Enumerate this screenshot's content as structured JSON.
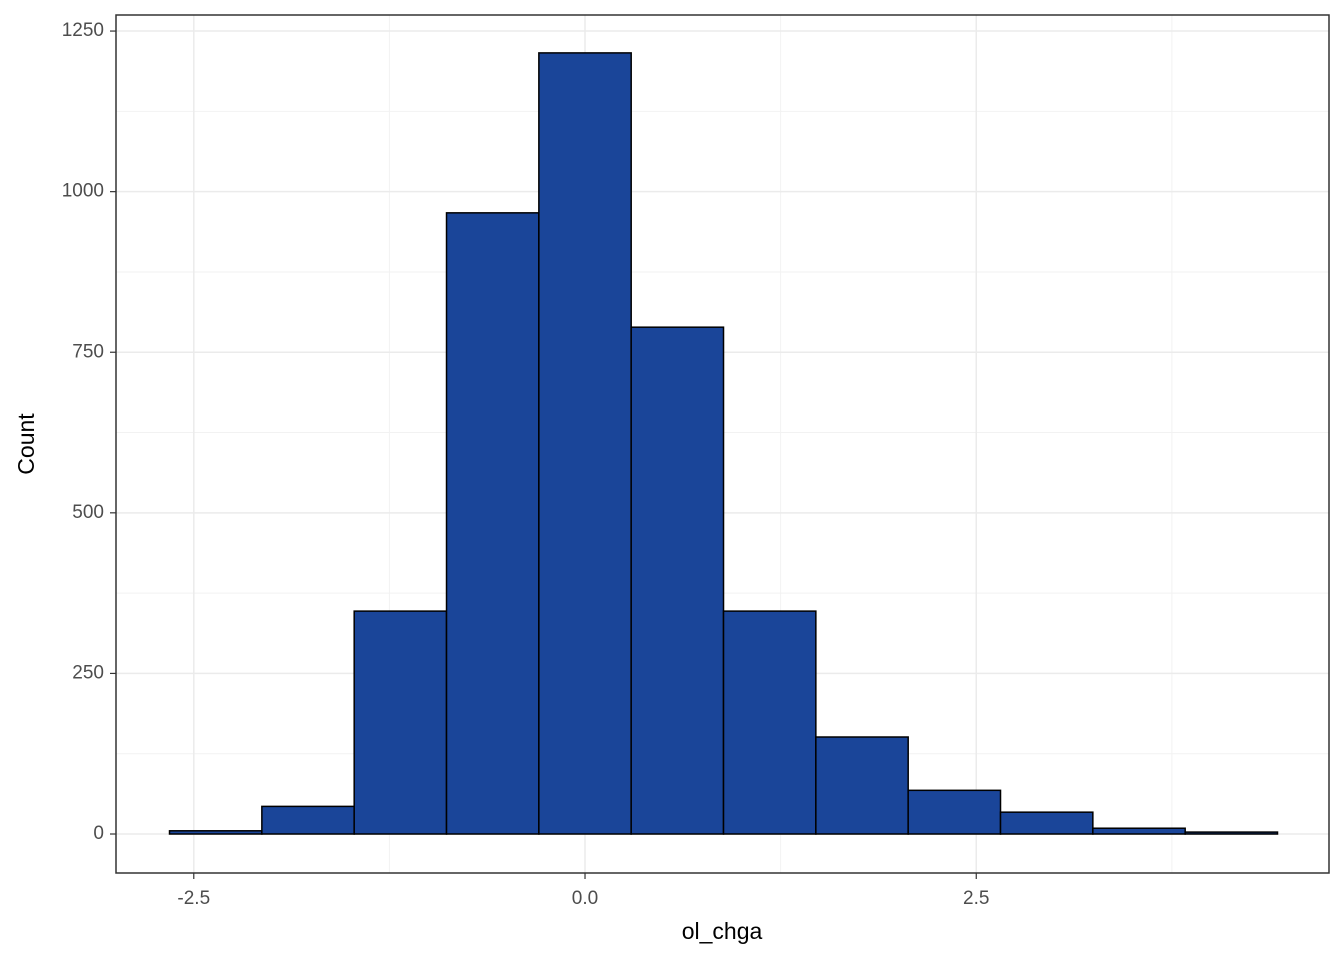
{
  "chart_data": {
    "type": "histogram",
    "x_label": "ol_chga",
    "y_label": "Count",
    "bins": [
      -2.655,
      -2.065,
      -1.475,
      -0.885,
      -0.295,
      0.295,
      0.885,
      1.475,
      2.065,
      2.655,
      3.245,
      3.835,
      4.425
    ],
    "counts": [
      5,
      43,
      347,
      967,
      1216,
      789,
      347,
      151,
      68,
      34,
      9,
      3
    ],
    "color": "#1a4599",
    "edgecolor": "#000000",
    "xlim": [
      -2.997,
      4.754
    ],
    "ylim": [
      -60.7,
      1275
    ],
    "xticks": [
      -2.5,
      {
        "value": 0,
        "label": "0.0"
      },
      2.5
    ],
    "yticks": [
      0,
      250,
      500,
      750,
      1000,
      1250
    ],
    "minor_xticks": [
      -1.25,
      1.25,
      3.75
    ],
    "minor_yticks": [
      125,
      375,
      625,
      875,
      1125
    ],
    "grid": true
  }
}
